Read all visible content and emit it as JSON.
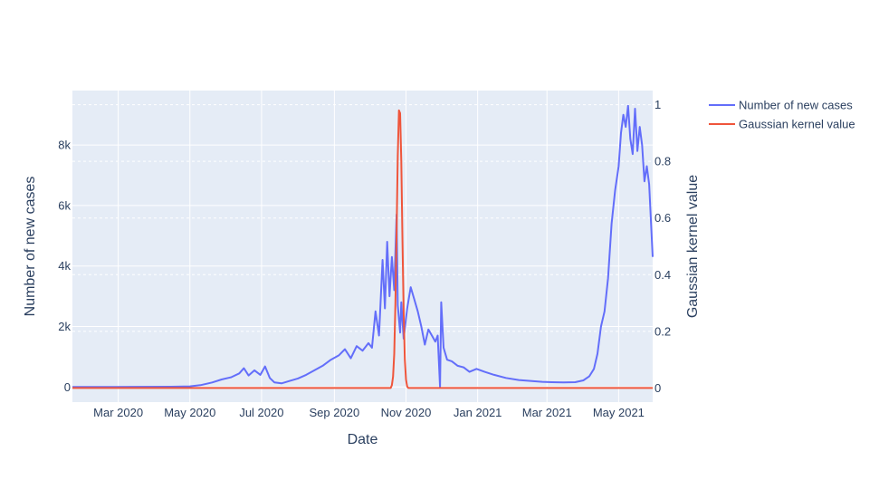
{
  "chart_data": {
    "type": "line",
    "title": "",
    "xlabel": "Date",
    "ylabel": "Number of new cases",
    "y2label": "Gaussian kernel value",
    "xlim": [
      "2020-01-22",
      "2021-05-30"
    ],
    "ylim": [
      -500,
      9800
    ],
    "y2lim": [
      -0.05,
      1.05
    ],
    "x_ticks": [
      {
        "date": "2020-03-01",
        "label": "Mar 2020"
      },
      {
        "date": "2020-05-01",
        "label": "May 2020"
      },
      {
        "date": "2020-07-01",
        "label": "Jul 2020"
      },
      {
        "date": "2020-09-01",
        "label": "Sep 2020"
      },
      {
        "date": "2020-11-01",
        "label": "Nov 2020"
      },
      {
        "date": "2021-01-01",
        "label": "Jan 2021"
      },
      {
        "date": "2021-03-01",
        "label": "Mar 2021"
      },
      {
        "date": "2021-05-01",
        "label": "May 2021"
      }
    ],
    "y_ticks": [
      {
        "value": 0,
        "label": "0"
      },
      {
        "value": 2000,
        "label": "2k"
      },
      {
        "value": 4000,
        "label": "4k"
      },
      {
        "value": 6000,
        "label": "6k"
      },
      {
        "value": 8000,
        "label": "8k"
      }
    ],
    "y2_ticks": [
      {
        "value": 0,
        "label": "0"
      },
      {
        "value": 0.2,
        "label": "0.2"
      },
      {
        "value": 0.4,
        "label": "0.4"
      },
      {
        "value": 0.6,
        "label": "0.6"
      },
      {
        "value": 0.8,
        "label": "0.8"
      },
      {
        "value": 1,
        "label": "1"
      }
    ],
    "grid": true,
    "legend_position": "top-right, outside plot",
    "series": [
      {
        "name": "Number of new cases",
        "axis": "y",
        "color": "#636efa",
        "points": [
          [
            "2020-01-22",
            0
          ],
          [
            "2020-02-15",
            0
          ],
          [
            "2020-03-15",
            5
          ],
          [
            "2020-04-15",
            10
          ],
          [
            "2020-05-01",
            20
          ],
          [
            "2020-05-10",
            60
          ],
          [
            "2020-05-20",
            150
          ],
          [
            "2020-05-28",
            250
          ],
          [
            "2020-06-05",
            320
          ],
          [
            "2020-06-12",
            450
          ],
          [
            "2020-06-16",
            620
          ],
          [
            "2020-06-20",
            380
          ],
          [
            "2020-06-25",
            550
          ],
          [
            "2020-06-30",
            400
          ],
          [
            "2020-07-04",
            680
          ],
          [
            "2020-07-08",
            300
          ],
          [
            "2020-07-12",
            150
          ],
          [
            "2020-07-18",
            120
          ],
          [
            "2020-07-25",
            200
          ],
          [
            "2020-08-01",
            280
          ],
          [
            "2020-08-08",
            400
          ],
          [
            "2020-08-15",
            550
          ],
          [
            "2020-08-22",
            700
          ],
          [
            "2020-08-29",
            900
          ],
          [
            "2020-09-05",
            1050
          ],
          [
            "2020-09-10",
            1250
          ],
          [
            "2020-09-15",
            950
          ],
          [
            "2020-09-20",
            1350
          ],
          [
            "2020-09-25",
            1200
          ],
          [
            "2020-09-30",
            1450
          ],
          [
            "2020-10-03",
            1300
          ],
          [
            "2020-10-06",
            2500
          ],
          [
            "2020-10-09",
            1700
          ],
          [
            "2020-10-12",
            4200
          ],
          [
            "2020-10-14",
            2600
          ],
          [
            "2020-10-16",
            4800
          ],
          [
            "2020-10-18",
            3000
          ],
          [
            "2020-10-20",
            4300
          ],
          [
            "2020-10-22",
            3200
          ],
          [
            "2020-10-24",
            5700
          ],
          [
            "2020-10-25",
            2700
          ],
          [
            "2020-10-27",
            1800
          ],
          [
            "2020-10-28",
            2800
          ],
          [
            "2020-10-30",
            1600
          ],
          [
            "2020-11-02",
            2600
          ],
          [
            "2020-11-05",
            3300
          ],
          [
            "2020-11-08",
            2900
          ],
          [
            "2020-11-11",
            2500
          ],
          [
            "2020-11-14",
            2000
          ],
          [
            "2020-11-17",
            1400
          ],
          [
            "2020-11-20",
            1900
          ],
          [
            "2020-11-23",
            1700
          ],
          [
            "2020-11-26",
            1500
          ],
          [
            "2020-11-28",
            1700
          ],
          [
            "2020-11-30",
            0
          ],
          [
            "2020-12-01",
            2800
          ],
          [
            "2020-12-03",
            1300
          ],
          [
            "2020-12-06",
            900
          ],
          [
            "2020-12-10",
            850
          ],
          [
            "2020-12-15",
            700
          ],
          [
            "2020-12-20",
            650
          ],
          [
            "2020-12-25",
            500
          ],
          [
            "2020-12-31",
            600
          ],
          [
            "2021-01-07",
            500
          ],
          [
            "2021-01-15",
            400
          ],
          [
            "2021-01-25",
            300
          ],
          [
            "2021-02-05",
            230
          ],
          [
            "2021-02-15",
            200
          ],
          [
            "2021-02-25",
            170
          ],
          [
            "2021-03-05",
            160
          ],
          [
            "2021-03-15",
            150
          ],
          [
            "2021-03-25",
            160
          ],
          [
            "2021-04-01",
            220
          ],
          [
            "2021-04-06",
            350
          ],
          [
            "2021-04-10",
            600
          ],
          [
            "2021-04-13",
            1100
          ],
          [
            "2021-04-16",
            2000
          ],
          [
            "2021-04-19",
            2500
          ],
          [
            "2021-04-22",
            3600
          ],
          [
            "2021-04-25",
            5400
          ],
          [
            "2021-04-28",
            6500
          ],
          [
            "2021-05-01",
            7300
          ],
          [
            "2021-05-03",
            8400
          ],
          [
            "2021-05-05",
            9000
          ],
          [
            "2021-05-07",
            8600
          ],
          [
            "2021-05-09",
            9300
          ],
          [
            "2021-05-11",
            8200
          ],
          [
            "2021-05-13",
            7700
          ],
          [
            "2021-05-15",
            9200
          ],
          [
            "2021-05-17",
            7800
          ],
          [
            "2021-05-19",
            8600
          ],
          [
            "2021-05-21",
            8000
          ],
          [
            "2021-05-23",
            6800
          ],
          [
            "2021-05-25",
            7300
          ],
          [
            "2021-05-27",
            6700
          ],
          [
            "2021-05-30",
            4300
          ]
        ]
      },
      {
        "name": "Gaussian kernel value",
        "axis": "y2",
        "color": "#ef553b",
        "points": [
          [
            "2020-01-22",
            0
          ],
          [
            "2020-10-19",
            0
          ],
          [
            "2020-10-20",
            0.01
          ],
          [
            "2020-10-21",
            0.04
          ],
          [
            "2020-10-22",
            0.12
          ],
          [
            "2020-10-23",
            0.3
          ],
          [
            "2020-10-24",
            0.55
          ],
          [
            "2020-10-25",
            0.82
          ],
          [
            "2020-10-26",
            0.98
          ],
          [
            "2020-10-27",
            0.97
          ],
          [
            "2020-10-28",
            0.8
          ],
          [
            "2020-10-29",
            0.52
          ],
          [
            "2020-10-30",
            0.27
          ],
          [
            "2020-10-31",
            0.1
          ],
          [
            "2020-11-01",
            0.03
          ],
          [
            "2020-11-02",
            0.005
          ],
          [
            "2020-11-03",
            0
          ],
          [
            "2021-05-30",
            0
          ]
        ]
      }
    ]
  }
}
